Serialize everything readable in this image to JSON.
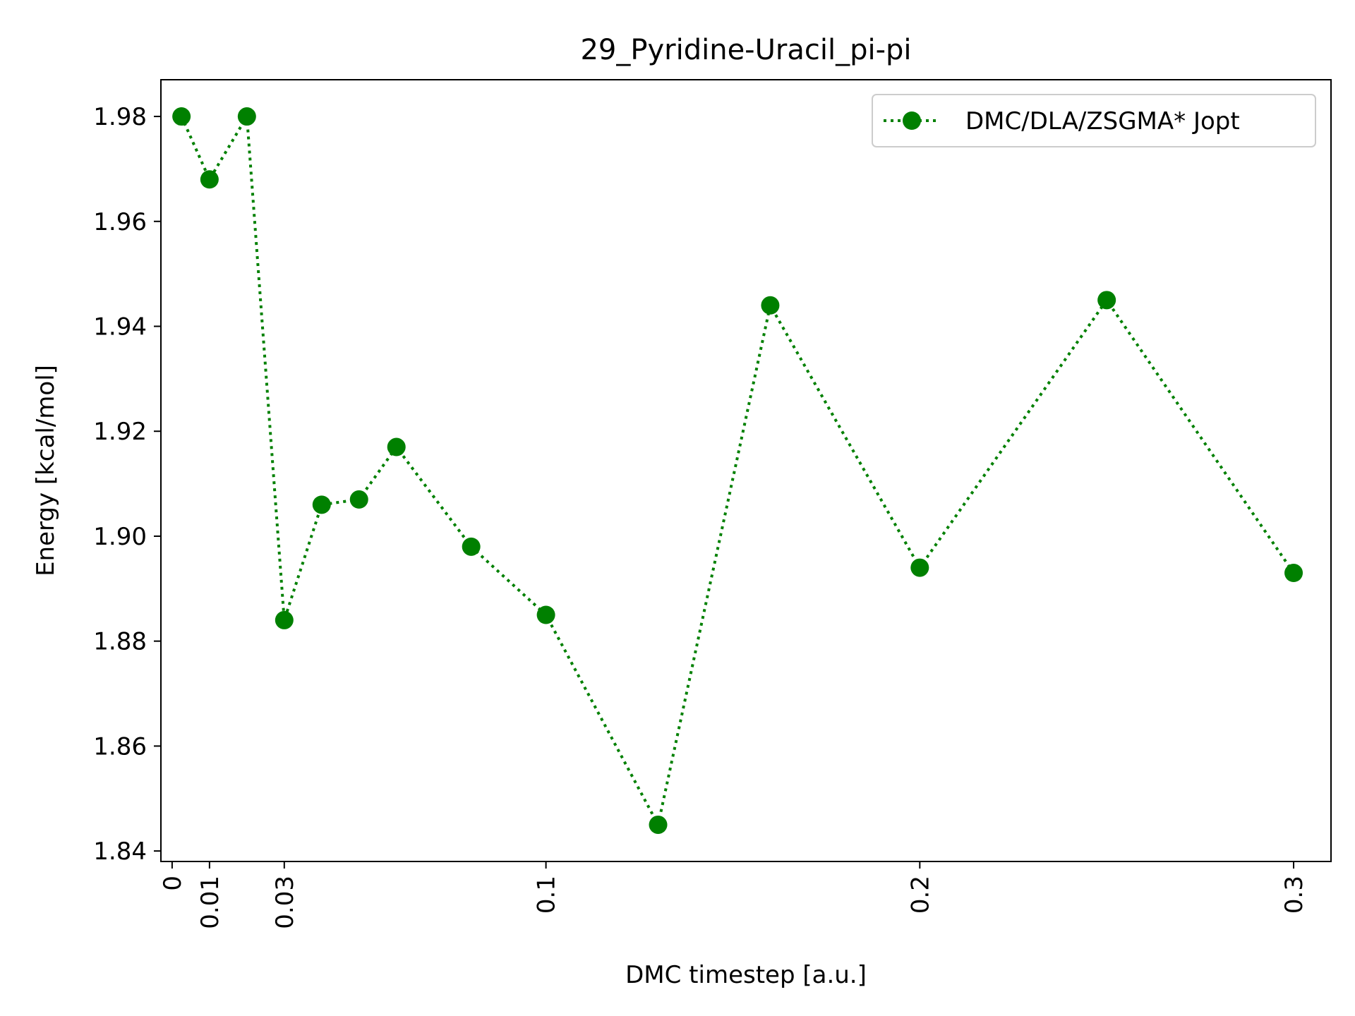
{
  "chart_data": {
    "type": "line",
    "title": "29_Pyridine-Uracil_pi-pi",
    "xlabel": "DMC timestep [a.u.]",
    "ylabel": "Energy [kcal/mol]",
    "xlim": [
      -0.003,
      0.31
    ],
    "ylim": [
      1.838,
      1.987
    ],
    "xticks": [
      0,
      0.01,
      0.03,
      0.1,
      0.2,
      0.3
    ],
    "xtick_labels": [
      "0",
      "0.01",
      "0.03",
      "0.1",
      "0.2",
      "0.3"
    ],
    "yticks": [
      1.84,
      1.86,
      1.88,
      1.9,
      1.92,
      1.94,
      1.96,
      1.98
    ],
    "ytick_labels": [
      "1.84",
      "1.86",
      "1.88",
      "1.90",
      "1.92",
      "1.94",
      "1.96",
      "1.98"
    ],
    "grid": false,
    "legend_position": "top-right",
    "series": [
      {
        "name": "DMC/DLA/ZSGMA* Jopt",
        "color": "#008000",
        "line_style": "dotted",
        "marker": "circle",
        "x": [
          0.0025,
          0.01,
          0.02,
          0.03,
          0.04,
          0.05,
          0.06,
          0.08,
          0.1,
          0.13,
          0.16,
          0.2,
          0.25,
          0.3
        ],
        "y": [
          1.98,
          1.968,
          1.98,
          1.884,
          1.906,
          1.907,
          1.917,
          1.898,
          1.885,
          1.845,
          1.944,
          1.894,
          1.945,
          1.893
        ]
      }
    ]
  }
}
